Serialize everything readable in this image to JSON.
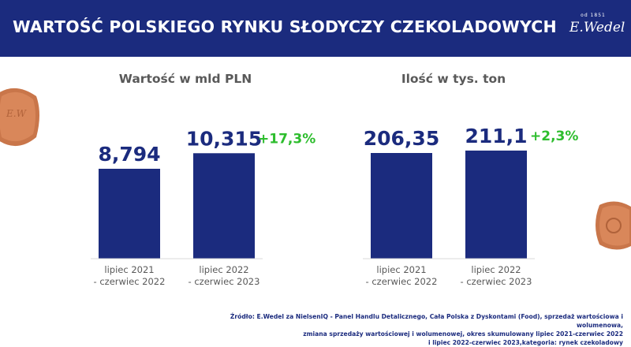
{
  "header": {
    "title": "WARTOŚĆ POLSKIEGO RYNKU SŁODYCZY CZEKOLADOWYCH",
    "logo_since": "od 1851",
    "logo_text": "E.Wedel"
  },
  "colors": {
    "header_bg": "#1b2b7e",
    "bar": "#1b2b7e",
    "value_text": "#1b2b7e",
    "growth_text": "#2dbd2d",
    "label_text": "#595959"
  },
  "chart_data": [
    {
      "type": "bar",
      "title": "Wartość w mld PLN",
      "categories": [
        "lipiec 2021\n- czerwiec 2022",
        "lipiec 2022\n- czerwiec 2023"
      ],
      "values": [
        8.794,
        10.315
      ],
      "value_labels": [
        "8,794",
        "10,315"
      ],
      "growth_label": "+17,3%"
    },
    {
      "type": "bar",
      "title": "Ilość w tys. ton",
      "categories": [
        "lipiec 2021\n- czerwiec 2022",
        "lipiec 2022\n- czerwiec 2023"
      ],
      "values": [
        206.35,
        211.1
      ],
      "value_labels": [
        "206,35",
        "211,1"
      ],
      "growth_label": "+2,3%"
    }
  ],
  "source": {
    "lines": [
      "Źródło: E.Wedel za NielsenIQ - Panel Handlu Detalicznego, Cała Polska z Dyskontami (Food), sprzedaż wartościowa i wolumenowa,",
      "zmiana sprzedaży wartościowej i wolumenowej,  okres skumulowany lipiec 2021-czerwiec 2022",
      "i lipiec 2022-czerwiec 2023,kategoria: rynek czekoladowy"
    ]
  },
  "decor": {
    "chocolate_left_icon": "chocolate-piece-icon",
    "chocolate_right_icon": "chocolate-piece-icon"
  }
}
